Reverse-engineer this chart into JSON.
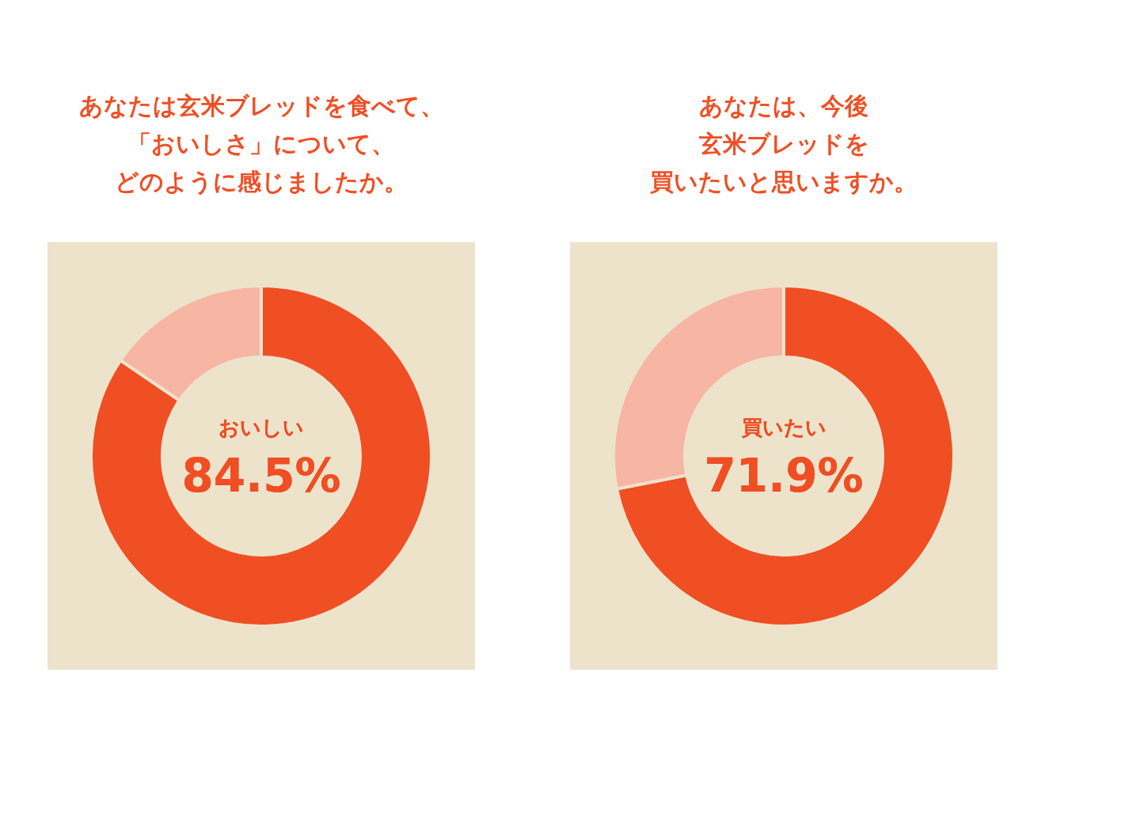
{
  "chart_data": [
    {
      "type": "donut",
      "title": [
        "あなたは玄米ブレッドを食べて、",
        "「おいしさ」について、",
        "どのように感じましたか。"
      ],
      "categories": [
        "おいしい",
        null
      ],
      "values": [
        84.5,
        15.5
      ],
      "colors": [
        "#f04e23",
        "#f7b5a3"
      ],
      "value_labels": [
        "84.5%",
        null
      ],
      "legend": false
    },
    {
      "type": "donut",
      "title": [
        "あなたは、今後",
        "玄米ブレッドを",
        "買いたいと思いますか。"
      ],
      "categories": [
        "買いたい",
        null
      ],
      "values": [
        71.9,
        28.1
      ],
      "colors": [
        "#f04e23",
        "#f7b5a3"
      ],
      "value_labels": [
        "71.9%",
        null
      ],
      "legend": false
    }
  ]
}
